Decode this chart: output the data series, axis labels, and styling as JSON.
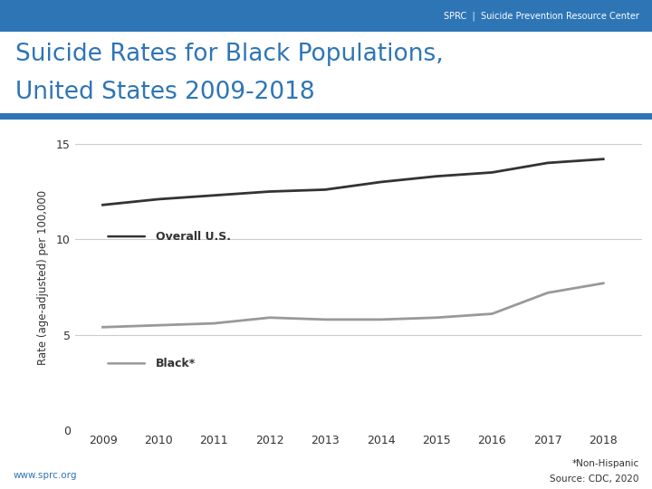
{
  "title_line1": "Suicide Rates for Black Populations,",
  "title_line2": "United States 2009-2018",
  "title_color": "#2e75b6",
  "header_bar_color": "#2e75b6",
  "header_text": "SPRC  |  Suicide Prevention Resource Center",
  "ylabel": "Rate (age-adjusted) per 100,000",
  "years": [
    2009,
    2010,
    2011,
    2012,
    2013,
    2014,
    2015,
    2016,
    2017,
    2018
  ],
  "overall_us": [
    11.8,
    12.1,
    12.3,
    12.5,
    12.6,
    13.0,
    13.3,
    13.5,
    14.0,
    14.2
  ],
  "black": [
    5.4,
    5.5,
    5.6,
    5.9,
    5.8,
    5.8,
    5.9,
    6.1,
    7.2,
    7.7
  ],
  "overall_color": "#333333",
  "black_color": "#999999",
  "background_color": "#ffffff",
  "ylim": [
    0,
    16
  ],
  "yticks": [
    0,
    5,
    10,
    15
  ],
  "grid_color": "#cccccc",
  "footer_url": "www.sprc.org",
  "footer_note": "*Non-Hispanic",
  "footer_source": "Source: CDC, 2020",
  "legend_overall": "Overall U.S.",
  "legend_black": "Black*",
  "linewidth": 2.0
}
